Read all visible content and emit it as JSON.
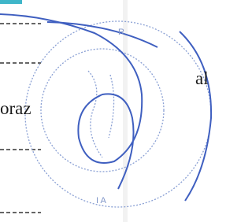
{
  "text": [
    "oraz",
    "al"
  ],
  "stamp": [
    "R",
    "I A"
  ]
}
